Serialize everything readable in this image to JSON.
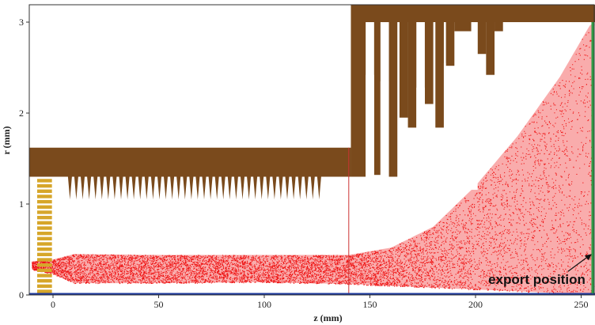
{
  "chart_data": {
    "type": "scatter",
    "title": "",
    "xlabel": "z (mm)",
    "ylabel": "r (mm)",
    "xlim": [
      -11,
      257
    ],
    "ylim": [
      0,
      3.2
    ],
    "x_ticks": [
      0,
      50,
      100,
      150,
      200,
      250
    ],
    "y_ticks": [
      0,
      1,
      2,
      3
    ],
    "grid": false,
    "annotations": [
      {
        "text": "export position",
        "points_to": {
          "z": 255,
          "r": 0.45
        }
      }
    ],
    "particle_envelope": [
      {
        "z": -10,
        "r_low": 0.28,
        "r_high": 0.37
      },
      {
        "z": 0,
        "r_low": 0.23,
        "r_high": 0.39
      },
      {
        "z": 10,
        "r_low": 0.13,
        "r_high": 0.45
      },
      {
        "z": 50,
        "r_low": 0.13,
        "r_high": 0.44
      },
      {
        "z": 100,
        "r_low": 0.14,
        "r_high": 0.44
      },
      {
        "z": 140,
        "r_low": 0.12,
        "r_high": 0.44
      },
      {
        "z": 160,
        "r_low": 0.1,
        "r_high": 0.52
      },
      {
        "z": 180,
        "r_low": 0.08,
        "r_high": 0.75
      },
      {
        "z": 200,
        "r_low": 0.06,
        "r_high": 1.2
      },
      {
        "z": 220,
        "r_low": 0.04,
        "r_high": 1.75
      },
      {
        "z": 240,
        "r_low": 0.02,
        "r_high": 2.4
      },
      {
        "z": 255,
        "r_low": 0.0,
        "r_high": 3.0
      }
    ],
    "colors": {
      "particles": "#ee1111",
      "electrode": "#7a4a1c",
      "source": "#d6a62a",
      "axis_line": "#1e3a9e",
      "export_line": "#2e9a45",
      "boundary_line": "#cc3333"
    }
  }
}
